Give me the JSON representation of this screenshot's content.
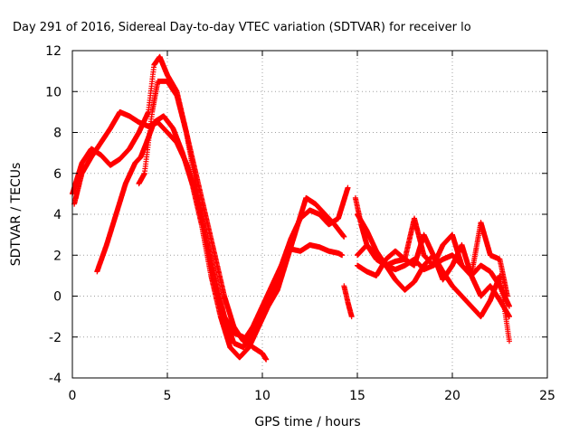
{
  "chart_data": {
    "type": "scatter",
    "title": "Day 291 of 2016, Sidereal Day-to-day VTEC variation (SDTVAR) for receiver lo",
    "xlabel": "GPS time / hours",
    "ylabel": "SDTVAR / TECUs",
    "xlim": [
      0,
      25
    ],
    "ylim": [
      -4,
      12
    ],
    "xticks": [
      "0",
      "5",
      "10",
      "15",
      "20",
      "25"
    ],
    "yticks": [
      "-4",
      "-2",
      "0",
      "2",
      "4",
      "6",
      "8",
      "10",
      "12"
    ],
    "grid": true,
    "marker": "plus",
    "color": "#ff0000",
    "series": [
      {
        "x": [
          0.0,
          0.5,
          1.0,
          1.5,
          2.0,
          2.5,
          3.0,
          3.5,
          4.0,
          4.3,
          4.6,
          5.0,
          5.5,
          6.0,
          6.5,
          7.0,
          7.5,
          8.0,
          8.5,
          9.0,
          9.5,
          10.0,
          10.5,
          11.0,
          11.5,
          12.0,
          12.5,
          13.0,
          13.5,
          14.0,
          14.2
        ],
        "y": [
          5.0,
          6.5,
          7.2,
          6.9,
          6.4,
          6.7,
          7.2,
          8.0,
          9.0,
          11.3,
          11.7,
          10.8,
          10.0,
          8.0,
          6.0,
          4.0,
          2.0,
          0.0,
          -1.5,
          -2.2,
          -1.5,
          -0.5,
          0.5,
          1.5,
          2.3,
          2.2,
          2.5,
          2.4,
          2.2,
          2.1,
          2.0
        ]
      },
      {
        "x": [
          0.1,
          0.5,
          1.0,
          1.5,
          2.0,
          2.5,
          3.0,
          3.5,
          4.0,
          4.5,
          5.0,
          5.5,
          6.0,
          6.5,
          7.0,
          7.5,
          8.0,
          8.5,
          9.0,
          9.5,
          10.0,
          10.5,
          11.0,
          11.5,
          12.0,
          12.5,
          13.0,
          13.5,
          14.0,
          14.5
        ],
        "y": [
          4.5,
          6.0,
          6.8,
          7.5,
          8.2,
          9.0,
          8.8,
          8.5,
          8.3,
          8.5,
          8.0,
          7.5,
          6.5,
          5.0,
          3.0,
          1.0,
          -1.0,
          -2.3,
          -2.5,
          -1.8,
          -0.8,
          0.2,
          1.5,
          2.8,
          3.8,
          4.2,
          4.0,
          3.5,
          3.8,
          5.3
        ]
      },
      {
        "x": [
          1.3,
          1.8,
          2.3,
          2.8,
          3.3,
          3.6,
          3.9,
          4.3,
          4.8,
          5.3,
          5.8,
          6.3,
          6.8,
          7.3,
          7.8,
          8.3,
          8.8,
          9.3,
          9.8,
          10.3,
          10.8,
          11.3,
          11.8,
          12.3,
          12.8,
          13.3,
          13.8,
          14.3
        ],
        "y": [
          1.2,
          2.5,
          4.0,
          5.5,
          6.5,
          6.8,
          7.5,
          8.5,
          8.8,
          8.2,
          7.0,
          5.5,
          3.5,
          1.0,
          -1.0,
          -2.5,
          -3.0,
          -2.5,
          -1.5,
          -0.5,
          0.3,
          1.8,
          3.3,
          4.8,
          4.5,
          4.0,
          3.5,
          2.9
        ]
      },
      {
        "x": [
          3.5,
          3.8,
          4.0,
          4.2,
          4.5,
          5.0,
          5.5,
          6.0,
          6.5,
          7.0,
          7.5,
          8.0,
          8.5,
          9.0,
          9.5,
          10.0,
          10.2
        ],
        "y": [
          5.5,
          6.0,
          7.5,
          9.0,
          10.5,
          10.5,
          9.8,
          8.0,
          5.5,
          3.0,
          0.5,
          -1.0,
          -1.8,
          -2.0,
          -2.5,
          -2.8,
          -3.1
        ]
      },
      {
        "x": [
          14.3,
          14.5,
          14.7
        ],
        "y": [
          0.5,
          -0.3,
          -1.0
        ]
      },
      {
        "x": [
          14.9,
          15.2,
          15.5,
          16.0,
          16.5,
          17.0,
          17.5,
          18.0,
          18.5,
          19.0,
          19.5,
          20.0,
          20.5,
          21.0,
          21.5,
          22.0,
          22.5,
          23.0
        ],
        "y": [
          4.8,
          3.5,
          2.5,
          1.8,
          1.5,
          1.3,
          1.5,
          1.8,
          1.3,
          1.5,
          1.8,
          2.0,
          1.5,
          1.0,
          1.5,
          1.2,
          0.5,
          -0.5
        ]
      },
      {
        "x": [
          15.0,
          15.5,
          16.0,
          16.5,
          17.0,
          17.5,
          18.0,
          18.5,
          19.0,
          19.5,
          20.0,
          20.5,
          21.0,
          21.5,
          22.0,
          22.5,
          23.0
        ],
        "y": [
          4.0,
          3.2,
          2.2,
          1.5,
          0.8,
          0.3,
          0.7,
          1.5,
          2.0,
          1.2,
          0.5,
          0.0,
          -0.5,
          -1.0,
          -0.2,
          1.0,
          -2.2
        ]
      },
      {
        "x": [
          15.0,
          15.5,
          16.0,
          16.5,
          17.0,
          17.5,
          18.0,
          18.5,
          19.0,
          19.5,
          20.0,
          20.5,
          21.0,
          21.5,
          22.0,
          22.5,
          22.9
        ],
        "y": [
          2.0,
          2.5,
          2.0,
          1.5,
          1.7,
          1.8,
          3.8,
          2.0,
          1.5,
          2.5,
          3.0,
          1.5,
          1.0,
          3.6,
          2.0,
          1.8,
          0.0
        ]
      },
      {
        "x": [
          15.0,
          15.5,
          16.0,
          16.5,
          17.0,
          17.5,
          18.0,
          18.5,
          19.0,
          19.5,
          20.0,
          20.5,
          21.0,
          21.5,
          22.0,
          22.5,
          23.0
        ],
        "y": [
          1.5,
          1.2,
          1.0,
          1.8,
          2.2,
          1.8,
          1.5,
          3.0,
          2.0,
          0.8,
          1.5,
          2.5,
          1.0,
          0.0,
          0.5,
          -0.2,
          -1.0
        ]
      }
    ]
  }
}
